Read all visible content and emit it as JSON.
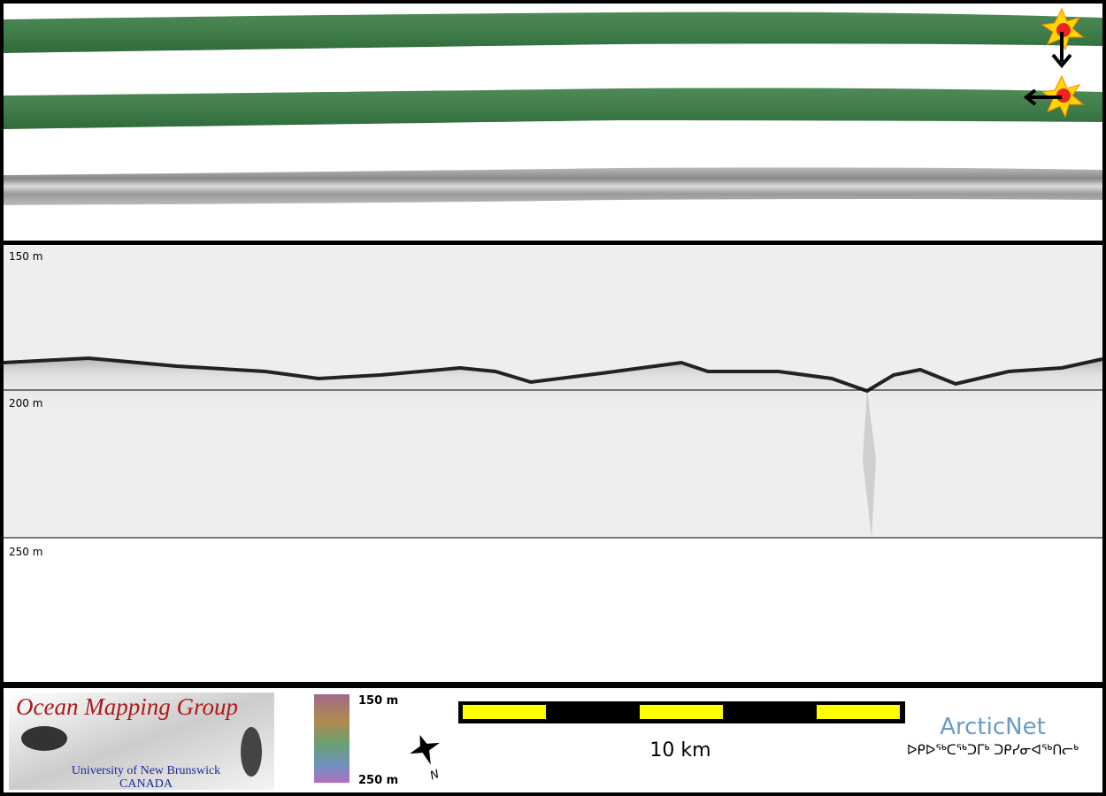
{
  "profile": {
    "depth_labels": [
      "150 m",
      "200 m",
      "250 m"
    ]
  },
  "logo": {
    "title": "Ocean Mapping Group",
    "university": "University of New Brunswick",
    "country": "CANADA"
  },
  "colorbar": {
    "top_label": "150 m",
    "bottom_label": "250 m"
  },
  "compass": {
    "label": "N"
  },
  "scale_bar": {
    "label": "10 km"
  },
  "partner": {
    "name": "ArcticNet",
    "syllabics": "ᐅᑭᐅᖅᑕᖅᑐᒥᒃ ᑐᑭᓯᓂᐊᖅᑎᓕᒃ"
  }
}
